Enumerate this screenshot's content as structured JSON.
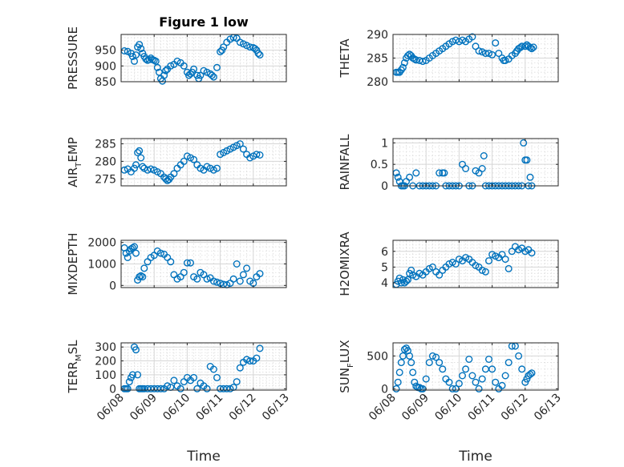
{
  "colors": {
    "marker": "#0072BD",
    "axis": "#262626"
  },
  "chart_data": [
    {
      "type": "scatter",
      "id": "pressure",
      "title": "Figure 1 low",
      "ylabel": "PRESSURE",
      "ylim": [
        850,
        1000
      ],
      "yticks": [
        850,
        900,
        950
      ],
      "ytick_labels": [
        "850",
        "900",
        "950"
      ],
      "xlim": [
        0,
        5
      ],
      "xticks": [
        0,
        1,
        2,
        3,
        4,
        5
      ],
      "xtick_labels": [
        "06/08",
        "06/09",
        "06/10",
        "06/11",
        "06/12",
        "06/13"
      ],
      "xlabel": "",
      "x": [
        0.1,
        0.2,
        0.3,
        0.35,
        0.4,
        0.45,
        0.5,
        0.55,
        0.6,
        0.65,
        0.7,
        0.75,
        0.8,
        0.85,
        0.9,
        0.95,
        1.0,
        1.05,
        1.1,
        1.15,
        1.2,
        1.25,
        1.3,
        1.35,
        1.4,
        1.5,
        1.6,
        1.7,
        1.8,
        1.9,
        2.0,
        2.05,
        2.1,
        2.15,
        2.2,
        2.3,
        2.35,
        2.4,
        2.5,
        2.6,
        2.7,
        2.75,
        2.8,
        2.9,
        3.0,
        3.05,
        3.1,
        3.2,
        3.3,
        3.4,
        3.5,
        3.6,
        3.7,
        3.8,
        3.9,
        4.0,
        4.05,
        4.1,
        4.15,
        4.2
      ],
      "y": [
        948,
        946,
        940,
        930,
        915,
        935,
        960,
        968,
        955,
        940,
        930,
        922,
        918,
        920,
        925,
        920,
        918,
        915,
        895,
        880,
        860,
        852,
        870,
        885,
        890,
        900,
        905,
        915,
        910,
        900,
        880,
        870,
        875,
        880,
        890,
        870,
        860,
        870,
        885,
        880,
        875,
        870,
        865,
        895,
        945,
        950,
        960,
        975,
        985,
        990,
        988,
        975,
        970,
        965,
        960,
        958,
        955,
        950,
        940,
        935
      ]
    },
    {
      "type": "scatter",
      "id": "theta",
      "ylabel": "THETA",
      "ylim": [
        280,
        290
      ],
      "yticks": [
        280,
        285,
        290
      ],
      "ytick_labels": [
        "280",
        "285",
        "290"
      ],
      "xlim": [
        0,
        5
      ],
      "xticks": [
        0,
        1,
        2,
        3,
        4,
        5
      ],
      "xtick_labels": [
        "06/08",
        "06/09",
        "06/10",
        "06/11",
        "06/12",
        "06/13"
      ],
      "xlabel": "",
      "x": [
        0.1,
        0.15,
        0.2,
        0.25,
        0.3,
        0.35,
        0.4,
        0.45,
        0.5,
        0.55,
        0.6,
        0.65,
        0.7,
        0.8,
        0.9,
        1.0,
        1.1,
        1.2,
        1.3,
        1.4,
        1.5,
        1.6,
        1.7,
        1.8,
        1.9,
        2.0,
        2.1,
        2.2,
        2.3,
        2.4,
        2.5,
        2.6,
        2.7,
        2.8,
        2.9,
        3.0,
        3.1,
        3.2,
        3.3,
        3.35,
        3.4,
        3.5,
        3.6,
        3.7,
        3.75,
        3.8,
        3.85,
        3.9,
        4.0,
        4.05,
        4.1,
        4.15,
        4.2,
        4.25
      ],
      "y": [
        282,
        282,
        282,
        282.5,
        283,
        284,
        285,
        285.5,
        285.8,
        285.5,
        285,
        284.8,
        284.6,
        284.5,
        284.3,
        284.5,
        285,
        285.5,
        286,
        286.5,
        287,
        287.5,
        288,
        288.5,
        288.8,
        288.5,
        288.8,
        288.5,
        289,
        289.5,
        287.5,
        286.5,
        286.3,
        286,
        286,
        285.7,
        288.2,
        286,
        285,
        284.5,
        284.5,
        284.8,
        285.5,
        286,
        286.5,
        287,
        287.2,
        287.5,
        287.5,
        287.8,
        287.5,
        287.2,
        287,
        287.3
      ]
    },
    {
      "type": "scatter",
      "id": "air_temp",
      "ylabel": "AIR_TEMP",
      "ylabel_parts": [
        "AIR",
        "T",
        "EMP"
      ],
      "ylim": [
        273,
        286.5
      ],
      "yticks": [
        275,
        280,
        285
      ],
      "ytick_labels": [
        "275",
        "280",
        "285"
      ],
      "xlim": [
        0,
        5
      ],
      "xticks": [
        0,
        1,
        2,
        3,
        4,
        5
      ],
      "xtick_labels": [
        "06/08",
        "06/09",
        "06/10",
        "06/11",
        "06/12",
        "06/13"
      ],
      "xlabel": "",
      "x": [
        0.1,
        0.2,
        0.3,
        0.4,
        0.45,
        0.5,
        0.55,
        0.6,
        0.65,
        0.7,
        0.8,
        0.9,
        1.0,
        1.1,
        1.2,
        1.3,
        1.35,
        1.4,
        1.45,
        1.5,
        1.6,
        1.7,
        1.8,
        1.9,
        2.0,
        2.1,
        2.2,
        2.3,
        2.4,
        2.5,
        2.6,
        2.7,
        2.8,
        2.9,
        3.0,
        3.1,
        3.2,
        3.3,
        3.4,
        3.5,
        3.6,
        3.7,
        3.8,
        3.9,
        4.0,
        4.1,
        4.2
      ],
      "y": [
        277.5,
        277.8,
        277,
        278,
        279,
        282.5,
        283,
        281,
        278.5,
        278,
        277.5,
        277.8,
        277.5,
        277,
        276.5,
        275.5,
        275,
        274.5,
        274.8,
        275.5,
        276.5,
        278,
        279,
        280,
        281.5,
        281,
        280.5,
        279,
        278,
        277.5,
        278.5,
        278,
        277.5,
        278,
        282,
        282.5,
        283,
        283.5,
        284,
        284.5,
        285,
        283.5,
        282,
        281,
        281.5,
        282,
        281.8
      ]
    },
    {
      "type": "scatter",
      "id": "rainfall",
      "ylabel": "RAINFALL",
      "ylim": [
        0,
        1.1
      ],
      "yticks": [
        0,
        0.5,
        1
      ],
      "ytick_labels": [
        "0",
        "0.5",
        "1"
      ],
      "xlim": [
        0,
        5
      ],
      "xticks": [
        0,
        1,
        2,
        3,
        4,
        5
      ],
      "xtick_labels": [
        "06/08",
        "06/09",
        "06/10",
        "06/11",
        "06/12",
        "06/13"
      ],
      "xlabel": "",
      "x": [
        0.1,
        0.15,
        0.2,
        0.25,
        0.3,
        0.35,
        0.4,
        0.5,
        0.6,
        0.7,
        0.8,
        0.9,
        1.0,
        1.1,
        1.2,
        1.3,
        1.4,
        1.5,
        1.55,
        1.6,
        1.7,
        1.8,
        1.9,
        2.0,
        2.1,
        2.2,
        2.3,
        2.4,
        2.5,
        2.6,
        2.7,
        2.75,
        2.8,
        2.9,
        3.0,
        3.1,
        3.2,
        3.3,
        3.4,
        3.5,
        3.6,
        3.7,
        3.8,
        3.9,
        3.95,
        4.0,
        4.05,
        4.1,
        4.15,
        4.2
      ],
      "y": [
        0.3,
        0.2,
        0.1,
        0,
        0,
        0,
        0.1,
        0.2,
        0,
        0.3,
        0,
        0,
        0,
        0,
        0,
        0,
        0.3,
        0.3,
        0.3,
        0,
        0,
        0,
        0,
        0,
        0.5,
        0.4,
        0,
        0,
        0.35,
        0.3,
        0.4,
        0.7,
        0,
        0,
        0,
        0,
        0,
        0,
        0,
        0,
        0,
        0,
        0,
        0,
        1,
        0.6,
        0.6,
        0,
        0.2,
        0
      ]
    },
    {
      "type": "scatter",
      "id": "mixdepth",
      "ylabel": "MIXDEPTH",
      "ylim": [
        -100,
        2100
      ],
      "yticks": [
        0,
        1000,
        2000
      ],
      "ytick_labels": [
        "0",
        "1000",
        "2000"
      ],
      "xlim": [
        0,
        5
      ],
      "xticks": [
        0,
        1,
        2,
        3,
        4,
        5
      ],
      "xtick_labels": [
        "06/08",
        "06/09",
        "06/10",
        "06/11",
        "06/12",
        "06/13"
      ],
      "xlabel": "",
      "x": [
        0.1,
        0.15,
        0.2,
        0.25,
        0.3,
        0.35,
        0.4,
        0.45,
        0.5,
        0.55,
        0.6,
        0.65,
        0.7,
        0.8,
        0.9,
        1.0,
        1.1,
        1.2,
        1.3,
        1.4,
        1.5,
        1.6,
        1.7,
        1.8,
        1.9,
        2.0,
        2.1,
        2.2,
        2.3,
        2.4,
        2.5,
        2.6,
        2.7,
        2.8,
        2.9,
        3.0,
        3.1,
        3.2,
        3.3,
        3.4,
        3.5,
        3.6,
        3.7,
        3.8,
        3.9,
        4.0,
        4.1,
        4.2
      ],
      "y": [
        1750,
        1500,
        1300,
        1600,
        1700,
        1750,
        1800,
        1500,
        250,
        400,
        450,
        400,
        800,
        1100,
        1300,
        1400,
        1600,
        1500,
        1450,
        1300,
        1100,
        500,
        300,
        400,
        600,
        1050,
        1050,
        400,
        300,
        600,
        500,
        300,
        350,
        200,
        150,
        100,
        50,
        30,
        100,
        300,
        1000,
        200,
        500,
        800,
        200,
        100,
        400,
        550
      ]
    },
    {
      "type": "scatter",
      "id": "h2omixra",
      "ylabel": "H2OMIXRA",
      "ylim": [
        3.7,
        6.7
      ],
      "yticks": [
        4,
        5,
        6
      ],
      "ytick_labels": [
        "4",
        "5",
        "6"
      ],
      "xlim": [
        0,
        5
      ],
      "xticks": [
        0,
        1,
        2,
        3,
        4,
        5
      ],
      "xtick_labels": [
        "06/08",
        "06/09",
        "06/10",
        "06/11",
        "06/12",
        "06/13"
      ],
      "xlabel": "",
      "x": [
        0.1,
        0.15,
        0.2,
        0.25,
        0.3,
        0.35,
        0.4,
        0.45,
        0.5,
        0.55,
        0.6,
        0.7,
        0.8,
        0.9,
        1.0,
        1.1,
        1.2,
        1.3,
        1.4,
        1.5,
        1.6,
        1.7,
        1.8,
        1.9,
        2.0,
        2.1,
        2.2,
        2.3,
        2.4,
        2.5,
        2.6,
        2.7,
        2.8,
        2.9,
        3.0,
        3.1,
        3.2,
        3.3,
        3.4,
        3.5,
        3.6,
        3.7,
        3.8,
        3.9,
        4.0,
        4.1,
        4.2
      ],
      "y": [
        3.9,
        4.1,
        4.3,
        4.0,
        4.2,
        4.0,
        4.1,
        4.2,
        4.6,
        4.8,
        4.5,
        4.4,
        4.6,
        4.5,
        4.7,
        4.9,
        5.0,
        4.7,
        4.5,
        4.8,
        5.0,
        5.2,
        5.3,
        5.2,
        5.5,
        5.4,
        5.6,
        5.5,
        5.3,
        5.1,
        5.0,
        4.8,
        4.7,
        5.4,
        5.8,
        5.7,
        5.6,
        5.8,
        5.5,
        4.9,
        6.0,
        6.3,
        6.1,
        6.2,
        6.0,
        6.1,
        5.9
      ]
    },
    {
      "type": "scatter",
      "id": "terr_msl",
      "ylabel": "TERR_MSL",
      "ylabel_parts": [
        "TERR",
        "M",
        "SL"
      ],
      "ylim": [
        -10,
        330
      ],
      "yticks": [
        0,
        100,
        200,
        300
      ],
      "ytick_labels": [
        "0",
        "100",
        "200",
        "300"
      ],
      "xlim": [
        0,
        5
      ],
      "xticks": [
        0,
        1,
        2,
        3,
        4,
        5
      ],
      "xtick_labels": [
        "06/08",
        "06/09",
        "06/10",
        "06/11",
        "06/12",
        "06/13"
      ],
      "xlabel": "Time",
      "x": [
        0.1,
        0.15,
        0.2,
        0.25,
        0.3,
        0.35,
        0.4,
        0.45,
        0.5,
        0.55,
        0.6,
        0.65,
        0.7,
        0.8,
        0.9,
        1.0,
        1.1,
        1.2,
        1.3,
        1.4,
        1.5,
        1.6,
        1.7,
        1.8,
        1.9,
        2.0,
        2.1,
        2.2,
        2.3,
        2.4,
        2.5,
        2.6,
        2.7,
        2.8,
        2.9,
        3.0,
        3.1,
        3.2,
        3.3,
        3.4,
        3.5,
        3.6,
        3.7,
        3.8,
        3.9,
        4.0,
        4.1,
        4.2
      ],
      "y": [
        0,
        0,
        0,
        50,
        80,
        100,
        300,
        280,
        100,
        0,
        0,
        0,
        0,
        0,
        0,
        0,
        0,
        0,
        0,
        20,
        10,
        60,
        20,
        0,
        50,
        80,
        60,
        80,
        0,
        40,
        20,
        0,
        160,
        140,
        80,
        0,
        0,
        0,
        0,
        10,
        50,
        150,
        190,
        210,
        200,
        200,
        220,
        290
      ]
    },
    {
      "type": "scatter",
      "id": "sun_flux",
      "ylabel": "SUN_FLUX",
      "ylabel_parts": [
        "SUN",
        "F",
        "LUX"
      ],
      "ylim": [
        -20,
        700
      ],
      "yticks": [
        0,
        500
      ],
      "ytick_labels": [
        "0",
        "500"
      ],
      "xlim": [
        0,
        5
      ],
      "xticks": [
        0,
        1,
        2,
        3,
        4,
        5
      ],
      "xtick_labels": [
        "06/08",
        "06/09",
        "06/10",
        "06/11",
        "06/12",
        "06/13"
      ],
      "xlabel": "Time",
      "x": [
        0.1,
        0.15,
        0.2,
        0.25,
        0.3,
        0.35,
        0.4,
        0.45,
        0.5,
        0.55,
        0.6,
        0.65,
        0.7,
        0.75,
        0.8,
        0.85,
        0.9,
        1.0,
        1.1,
        1.2,
        1.3,
        1.4,
        1.5,
        1.6,
        1.7,
        1.8,
        1.9,
        2.0,
        2.1,
        2.2,
        2.3,
        2.4,
        2.5,
        2.6,
        2.7,
        2.8,
        2.9,
        3.0,
        3.1,
        3.2,
        3.3,
        3.4,
        3.5,
        3.6,
        3.7,
        3.8,
        3.9,
        4.0,
        4.05,
        4.1,
        4.15,
        4.2
      ],
      "y": [
        0,
        100,
        250,
        400,
        500,
        600,
        620,
        580,
        500,
        400,
        250,
        100,
        40,
        20,
        20,
        0,
        0,
        150,
        400,
        500,
        480,
        400,
        300,
        150,
        100,
        0,
        0,
        80,
        200,
        300,
        450,
        200,
        100,
        0,
        150,
        300,
        450,
        300,
        100,
        0,
        50,
        200,
        400,
        650,
        650,
        500,
        300,
        100,
        150,
        200,
        220,
        240
      ]
    }
  ]
}
